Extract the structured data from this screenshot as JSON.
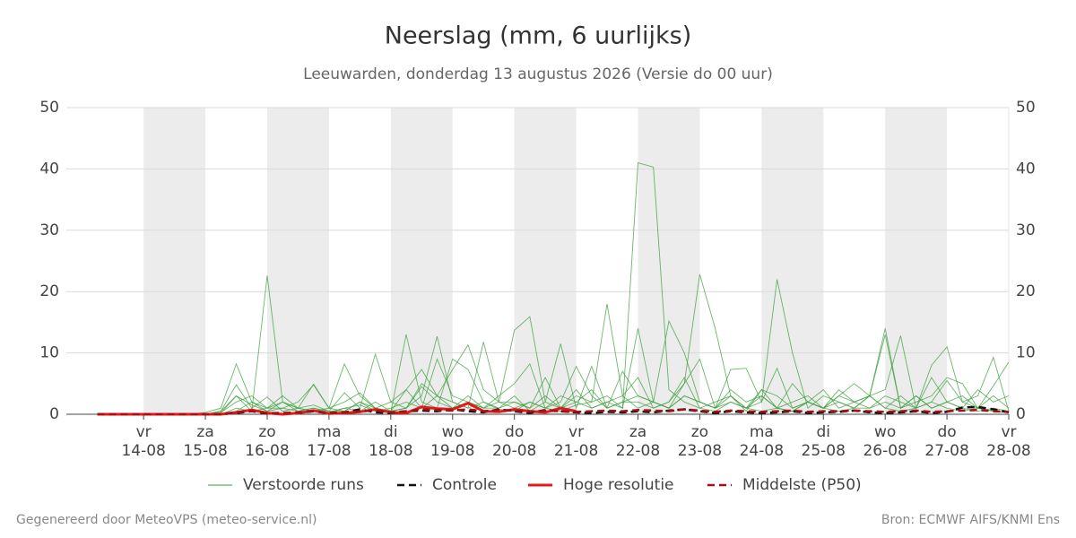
{
  "chart_data": {
    "type": "line",
    "title": "Neerslag (mm, 6 uurlijks)",
    "subtitle": "Leeuwarden, donderdag 13 augustus 2026 (Versie do 00 uur)",
    "footer_left": "Gegenereerd door MeteoVPS (meteo-service.nl)",
    "footer_right": "Bron: ECMWF AIFS/KNMI Ens",
    "x": [
      13.25,
      13.5,
      13.75,
      14,
      14.25,
      14.5,
      14.75,
      15,
      15.25,
      15.5,
      15.75,
      16,
      16.25,
      16.5,
      16.75,
      17,
      17.25,
      17.5,
      17.75,
      18,
      18.25,
      18.5,
      18.75,
      19,
      19.25,
      19.5,
      19.75,
      20,
      20.25,
      20.5,
      20.75,
      21,
      21.25,
      21.5,
      21.75,
      22,
      22.25,
      22.5,
      22.75,
      23,
      23.25,
      23.5,
      23.75,
      24,
      24.25,
      24.5,
      24.75,
      25,
      25.25,
      25.5,
      25.75,
      26,
      26.25,
      26.5,
      26.75,
      27,
      27.25,
      27.5,
      27.75,
      28
    ],
    "xlim": [
      12.75,
      28
    ],
    "xticks": [
      {
        "value": 14,
        "label": [
          "vr",
          "14-08"
        ]
      },
      {
        "value": 15,
        "label": [
          "za",
          "15-08"
        ]
      },
      {
        "value": 16,
        "label": [
          "zo",
          "16-08"
        ]
      },
      {
        "value": 17,
        "label": [
          "ma",
          "17-08"
        ]
      },
      {
        "value": 18,
        "label": [
          "di",
          "18-08"
        ]
      },
      {
        "value": 19,
        "label": [
          "wo",
          "19-08"
        ]
      },
      {
        "value": 20,
        "label": [
          "do",
          "20-08"
        ]
      },
      {
        "value": 21,
        "label": [
          "vr",
          "21-08"
        ]
      },
      {
        "value": 22,
        "label": [
          "za",
          "22-08"
        ]
      },
      {
        "value": 23,
        "label": [
          "zo",
          "23-08"
        ]
      },
      {
        "value": 24,
        "label": [
          "ma",
          "24-08"
        ]
      },
      {
        "value": 25,
        "label": [
          "di",
          "25-08"
        ]
      },
      {
        "value": 26,
        "label": [
          "wo",
          "26-08"
        ]
      },
      {
        "value": 27,
        "label": [
          "do",
          "27-08"
        ]
      },
      {
        "value": 28,
        "label": [
          "vr",
          "28-08"
        ]
      }
    ],
    "ylim": [
      0,
      50
    ],
    "yticks": [
      0,
      10,
      20,
      30,
      40,
      50
    ],
    "grid": true,
    "ensemble": {
      "name": "Verstoorde runs",
      "color": "#3a9d3a",
      "runs": [
        [
          0,
          0,
          0,
          0,
          0,
          0,
          0,
          0,
          0.5,
          3,
          0.5,
          22.6,
          2,
          1,
          0.5,
          0.3,
          1,
          0.5,
          2,
          0.5,
          4,
          7.3,
          3,
          2,
          1,
          2,
          0.8,
          0.5,
          2,
          1,
          0.5,
          1.5,
          2,
          3,
          1,
          41,
          40.3,
          4,
          2,
          1,
          0.5,
          2,
          1,
          0.5,
          1,
          0.5,
          2,
          1,
          0.5,
          1,
          3,
          1,
          0.5,
          1,
          2,
          1,
          0.5,
          1,
          0.5,
          0.3
        ],
        [
          0,
          0,
          0,
          0,
          0,
          0,
          0,
          0.3,
          1,
          8.2,
          2,
          0.5,
          1,
          2,
          4.8,
          1,
          0.5,
          2,
          0.5,
          0.3,
          13,
          2,
          1,
          9,
          7.3,
          2,
          1,
          3,
          0.5,
          2,
          1,
          4,
          1,
          2,
          1,
          14,
          2,
          1,
          5,
          22.8,
          14,
          3,
          1,
          2,
          7.5,
          1,
          2,
          1,
          3,
          5,
          3,
          14,
          1,
          3,
          1,
          2,
          3,
          1,
          0.5,
          0.3
        ],
        [
          0,
          0,
          0,
          0,
          0,
          0,
          0,
          0,
          0.5,
          4.8,
          1,
          2.8,
          0.5,
          1,
          4.9,
          1,
          8.2,
          3,
          1,
          0.5,
          1,
          3,
          12.7,
          2,
          1,
          11.8,
          2,
          13.7,
          15.9,
          2,
          11.5,
          1,
          7.8,
          1,
          2,
          3,
          2,
          15.2,
          10,
          2,
          1,
          7.3,
          7.5,
          2,
          22,
          10,
          1,
          3,
          2,
          1,
          3,
          4,
          12.8,
          1,
          8,
          11,
          2,
          3,
          9.3,
          0.5
        ],
        [
          0,
          0,
          0,
          0,
          0,
          0,
          0,
          0,
          0.3,
          2,
          3,
          1,
          2,
          1,
          1.5,
          0.5,
          3.5,
          1,
          9.8,
          2,
          1,
          5,
          3,
          7.3,
          11.3,
          4,
          2,
          2,
          1,
          6,
          1,
          3,
          2,
          18,
          3,
          6,
          1,
          2,
          5,
          9,
          1,
          3,
          0.5,
          4,
          1,
          0.5,
          2,
          1,
          4,
          2,
          3,
          13,
          1,
          2,
          3,
          6,
          5,
          1,
          4.6,
          8.5
        ],
        [
          0,
          0,
          0,
          0,
          0,
          0,
          0,
          0,
          0,
          1,
          0.5,
          1,
          3,
          1,
          0.5,
          1,
          2,
          3.5,
          1,
          2,
          4,
          1,
          9,
          3,
          2,
          1,
          3,
          5,
          8.2,
          1,
          3,
          2,
          4,
          1,
          2,
          2,
          1,
          2,
          6,
          1,
          2,
          3,
          1,
          4,
          3,
          1,
          2,
          4,
          1,
          2,
          3,
          1,
          3,
          1,
          6,
          2,
          1,
          4,
          2,
          3
        ],
        [
          0,
          0,
          0,
          0,
          0,
          0,
          0,
          0,
          0,
          0.5,
          2,
          1,
          1,
          0.5,
          1,
          0.3,
          1,
          1.5,
          0.5,
          1,
          2,
          1,
          3,
          1,
          2,
          1,
          1,
          2,
          1,
          3,
          1,
          2,
          1,
          2,
          3,
          1,
          2,
          1,
          3,
          2,
          1,
          2,
          1,
          3,
          1,
          2,
          3,
          1,
          2,
          1,
          1,
          2,
          1,
          3,
          1,
          2,
          1,
          0.5,
          1,
          0.5
        ],
        [
          0,
          0,
          0,
          0,
          0,
          0,
          0,
          0,
          0.2,
          3,
          1.5,
          0.5,
          2,
          0.5,
          1,
          0.5,
          0.5,
          2,
          1,
          0.5,
          1,
          4.5,
          2,
          1,
          3,
          1,
          2,
          1,
          2,
          1,
          2,
          7.8,
          3,
          1,
          7,
          3,
          2,
          1,
          3,
          2,
          1,
          4,
          2,
          3,
          1,
          5,
          2,
          1,
          3,
          2,
          1,
          3,
          2,
          1,
          2,
          5.5,
          2,
          1,
          3,
          1
        ]
      ]
    },
    "series": [
      {
        "name": "Controle",
        "color": "#111111",
        "dash": "dashed",
        "values": [
          0,
          0,
          0,
          0,
          0,
          0,
          0,
          0,
          0,
          0.2,
          0.5,
          0.1,
          0.1,
          0.2,
          0.5,
          0.2,
          0.3,
          0.8,
          0.3,
          0.2,
          0.5,
          0.6,
          0.5,
          0.8,
          0.5,
          0.3,
          0.8,
          0.5,
          0.2,
          0.7,
          0.5,
          0.3,
          0.2,
          0.4,
          0.3,
          0.5,
          0.3,
          0.6,
          0.8,
          0.5,
          0.2,
          0.5,
          0.3,
          0.2,
          0.3,
          0.5,
          0.2,
          0.3,
          0.4,
          0.6,
          0.3,
          0.2,
          0.3,
          0.5,
          0.2,
          0.4,
          1.1,
          1.2,
          0.8,
          0.3
        ]
      },
      {
        "name": "Hoge resolutie",
        "color": "#e3191c",
        "dash": "solid",
        "values": [
          0,
          0,
          0,
          0,
          0,
          0,
          0,
          0,
          0,
          0.3,
          0.7,
          0.2,
          0,
          0.2,
          0.6,
          0.1,
          0.2,
          0.4,
          0.8,
          0.3,
          0.2,
          1.2,
          0.9,
          0.8,
          1.8,
          0.5,
          0.4,
          0.8,
          0.5,
          0.3,
          1,
          0.5,
          null,
          null,
          null,
          null,
          null,
          null,
          null,
          null,
          null,
          null,
          null,
          null,
          null,
          null,
          null,
          null,
          null,
          null,
          null,
          null,
          null,
          null,
          null,
          null,
          null,
          null,
          null,
          null
        ]
      },
      {
        "name": "Middelste (P50)",
        "color": "#a50f15",
        "dash": "dashed",
        "values": [
          0,
          0,
          0,
          0,
          0,
          0,
          0,
          0,
          0,
          0.3,
          0.5,
          0.2,
          0.2,
          0.3,
          0.5,
          0.2,
          0.3,
          0.5,
          0.6,
          0.3,
          0.5,
          0.8,
          0.7,
          0.6,
          0.8,
          0.5,
          0.7,
          0.6,
          0.4,
          0.6,
          0.5,
          0.4,
          0.5,
          0.6,
          0.5,
          0.7,
          0.6,
          0.5,
          0.8,
          0.6,
          0.4,
          0.6,
          0.5,
          0.4,
          0.5,
          0.6,
          0.4,
          0.5,
          0.5,
          0.6,
          0.5,
          0.4,
          0.5,
          0.6,
          0.4,
          0.5,
          0.6,
          0.7,
          0.5,
          0.4
        ]
      }
    ]
  }
}
